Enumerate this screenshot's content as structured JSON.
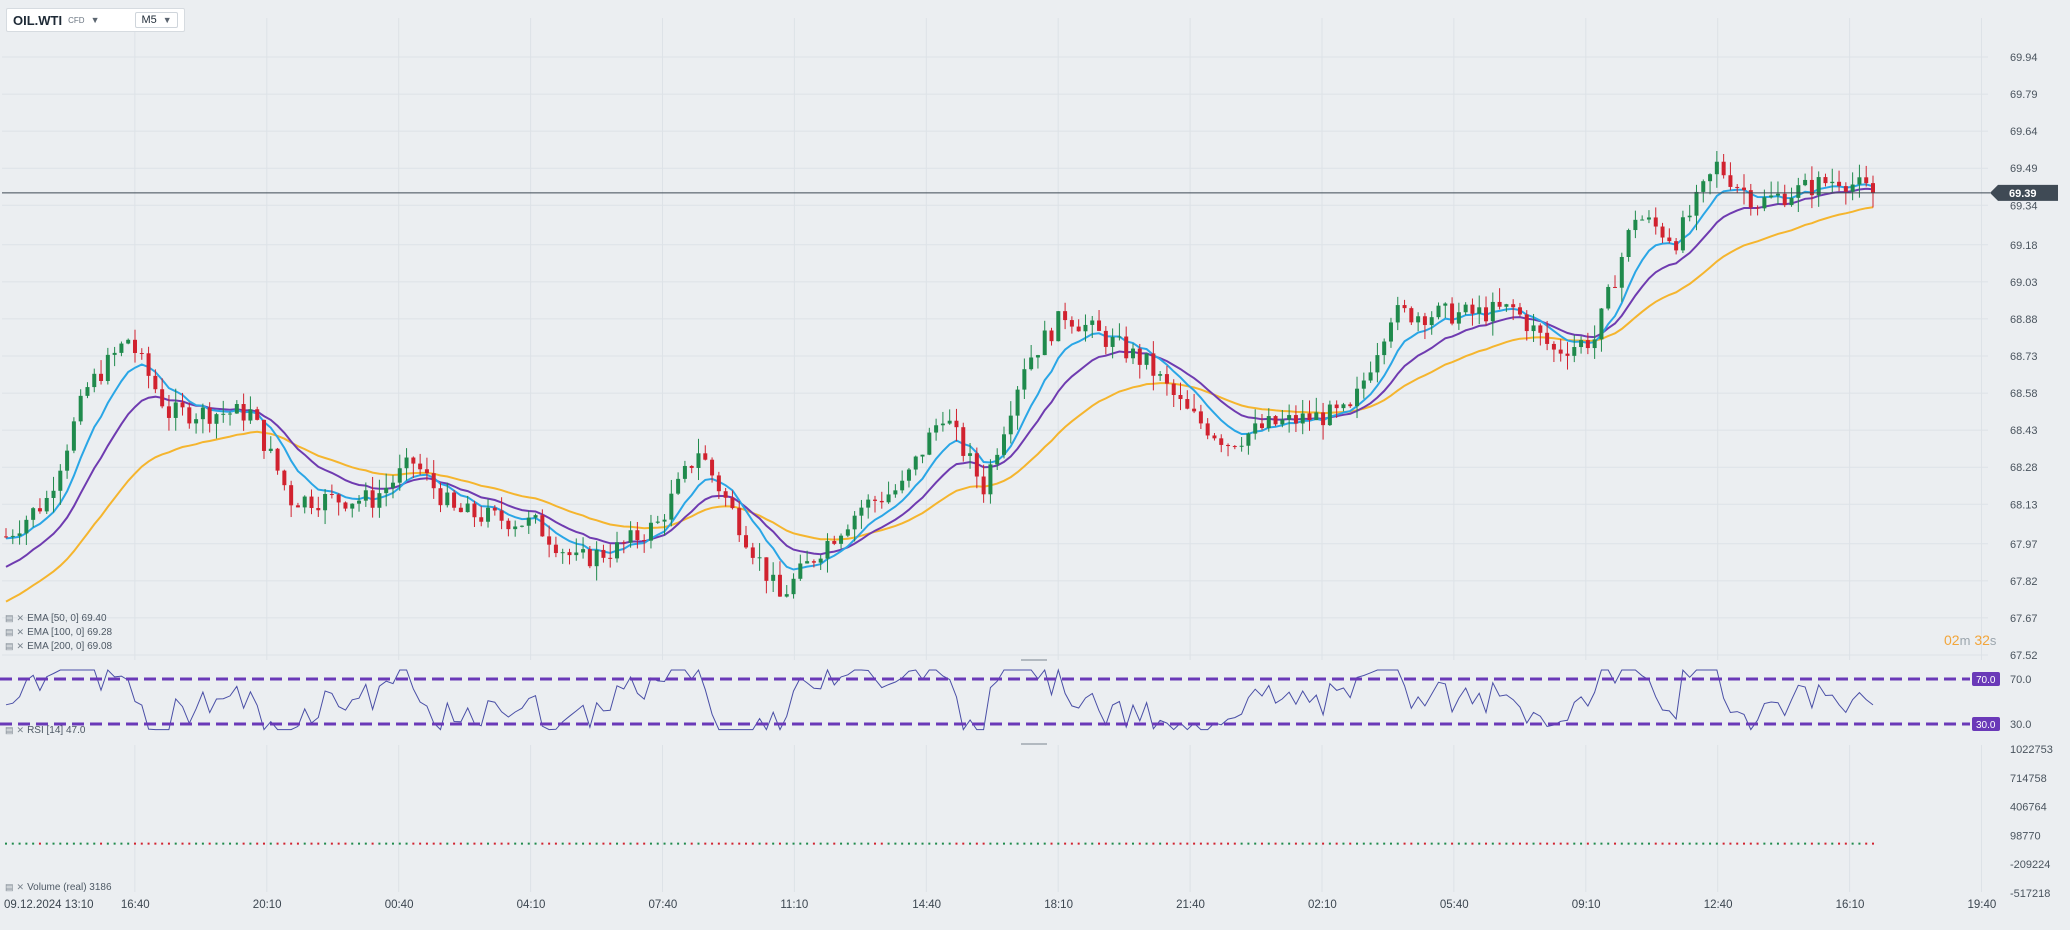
{
  "toolbar": {
    "symbol": "OIL.WTI",
    "instrument_type": "CFD",
    "timeframe": "M5",
    "symbol_caret_icon": "caret-down-icon",
    "timeframe_caret_icon": "caret-down-icon"
  },
  "countdown": {
    "minutes": "02",
    "minutes_unit": "m",
    "seconds": "32",
    "seconds_unit": "s"
  },
  "legend": {
    "ema50": "EMA [50, 0] 69.40",
    "ema100": "EMA [100, 0] 69.28",
    "ema200": "EMA [200, 0] 69.08",
    "rsi": "RSI [14] 47.0",
    "volume": "Volume (real) 3186",
    "item_icons": [
      "settings-icon",
      "close-icon"
    ]
  },
  "colors": {
    "background": "#ebeef1",
    "up": "#1f8a4c",
    "down": "#d1222f",
    "ema50": "#2aa6e6",
    "ema100": "#6f3bb0",
    "ema200": "#f5b52e",
    "rsi_line": "#4a4fa6",
    "rsi_band": "#6a39b8",
    "price_tag": "#3f4a55",
    "countdown": "#f2a53a"
  },
  "chart_data": [
    {
      "type": "candlestick",
      "title": "",
      "timeframe": "M5",
      "xlabel": "",
      "ylabel": "",
      "x_ticks": [
        "09.12.2024  13:10",
        "16:40",
        "20:10",
        "00:40",
        "04:10",
        "07:40",
        "11:10",
        "14:40",
        "18:10",
        "21:40",
        "02:10",
        "05:40",
        "09:10",
        "12:40",
        "16:10",
        "19:40"
      ],
      "y_ticks": [
        69.94,
        69.79,
        69.64,
        69.49,
        69.34,
        69.18,
        69.03,
        68.88,
        68.73,
        68.58,
        68.43,
        68.28,
        68.13,
        67.97,
        67.82,
        67.67,
        67.52
      ],
      "ylim": [
        67.52,
        69.94
      ],
      "last_price": 69.39,
      "grid": true,
      "price_path_anchors": [
        [
          0,
          68.0
        ],
        [
          6,
          68.15
        ],
        [
          12,
          68.6
        ],
        [
          18,
          68.8
        ],
        [
          24,
          68.5
        ],
        [
          36,
          68.5
        ],
        [
          42,
          68.15
        ],
        [
          54,
          68.15
        ],
        [
          60,
          68.3
        ],
        [
          66,
          68.1
        ],
        [
          78,
          68.05
        ],
        [
          84,
          67.9
        ],
        [
          90,
          67.95
        ],
        [
          96,
          68.05
        ],
        [
          102,
          68.35
        ],
        [
          108,
          68.05
        ],
        [
          114,
          67.75
        ],
        [
          120,
          67.95
        ],
        [
          126,
          68.12
        ],
        [
          132,
          68.2
        ],
        [
          138,
          68.5
        ],
        [
          144,
          68.2
        ],
        [
          150,
          68.7
        ],
        [
          156,
          68.9
        ],
        [
          162,
          68.8
        ],
        [
          168,
          68.7
        ],
        [
          174,
          68.5
        ],
        [
          180,
          68.38
        ],
        [
          186,
          68.45
        ],
        [
          192,
          68.48
        ],
        [
          198,
          68.5
        ],
        [
          204,
          68.9
        ],
        [
          210,
          68.9
        ],
        [
          216,
          68.9
        ],
        [
          222,
          68.92
        ],
        [
          228,
          68.75
        ],
        [
          234,
          68.8
        ],
        [
          240,
          69.3
        ],
        [
          246,
          69.2
        ],
        [
          252,
          69.5
        ],
        [
          258,
          69.35
        ],
        [
          264,
          69.4
        ],
        [
          270,
          69.45
        ],
        [
          275,
          69.39
        ]
      ],
      "series": [
        {
          "name": "EMA [50, 0]",
          "last_value": 69.4
        },
        {
          "name": "EMA [100, 0]",
          "last_value": 69.28
        },
        {
          "name": "EMA [200, 0]",
          "last_value": 69.08
        }
      ]
    },
    {
      "type": "line",
      "title": "RSI [14] 47.0",
      "y_ticks": [
        70.0,
        30.0
      ],
      "ylim": [
        30,
        70
      ],
      "levels": [
        70.0,
        30.0
      ],
      "last_value": 47.0
    },
    {
      "type": "bar",
      "title": "Volume (real) 3186",
      "y_ticks": [
        1022753,
        714758,
        406764,
        98770,
        -209224,
        -517218
      ],
      "ylim": [
        -517218,
        1022753
      ],
      "last_value": 3186
    }
  ]
}
